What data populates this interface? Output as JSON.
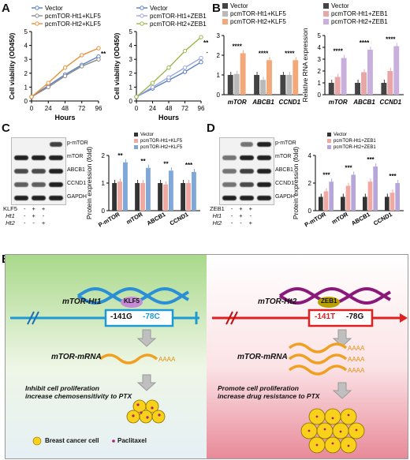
{
  "panels": {
    "A": "A",
    "B": "B",
    "C": "C",
    "D": "D",
    "E": "E"
  },
  "a1": {
    "ylabel": "Cell viability (OD450)",
    "xlabel": "Hours",
    "legend": [
      "Vector",
      "pcmTOR-Ht1+KLF5",
      "pcmTOR-Ht2+KLF5"
    ],
    "colors": [
      "#5b7fbf",
      "#8a8a8a",
      "#e8913a"
    ],
    "ticks_x": [
      "0",
      "24",
      "48",
      "72",
      "96"
    ],
    "ticks_y": [
      "0",
      "1",
      "2",
      "3",
      "4",
      "5"
    ],
    "sig": "**"
  },
  "a2": {
    "ylabel": "Cell viability (OD450)",
    "xlabel": "Hours",
    "legend": [
      "Vector",
      "pcmTOR-Ht1+ZEB1",
      "pcmTOR-Ht2+ZEB1"
    ],
    "colors": [
      "#5b7fbf",
      "#9aa7e0",
      "#9ab84a"
    ],
    "ticks_x": [
      "0",
      "24",
      "48",
      "72",
      "96"
    ],
    "ticks_y": [
      "0",
      "1",
      "2",
      "3",
      "4",
      "5"
    ],
    "sig": "**"
  },
  "b1": {
    "ylabel": "Relative RNA expression",
    "legend": [
      "Vector",
      "pcmTOR-Ht1+KLF5",
      "pcmTOR-Ht2+KLF5"
    ],
    "colors": [
      "#444444",
      "#b9b9b9",
      "#f2a878"
    ],
    "categories": [
      "mTOR",
      "ABCB1",
      "CCND1"
    ],
    "ticks_y": [
      "0",
      "1",
      "2",
      "3"
    ],
    "sig": "****"
  },
  "b2": {
    "ylabel": "Relative RNA expression",
    "legend": [
      "Vector",
      "pcmTOR-Ht1+ZEB1",
      "pcmTOR-Ht2+ZEB1"
    ],
    "colors": [
      "#444444",
      "#e8a6a6",
      "#c9b0dc"
    ],
    "categories": [
      "mTOR",
      "ABCB1",
      "CCND1"
    ],
    "ticks_y": [
      "0",
      "1",
      "2",
      "3",
      "4",
      "5"
    ],
    "sig": "****"
  },
  "c": {
    "blot_labels": [
      "p-mTOR",
      "mTOR",
      "ABCB1",
      "CCND1",
      "GAPDH"
    ],
    "rows": [
      {
        "name": "KLF5",
        "vals": [
          "-",
          "+",
          "+"
        ]
      },
      {
        "name": "Ht1",
        "vals": [
          "-",
          "+",
          "-"
        ]
      },
      {
        "name": "Ht2",
        "vals": [
          "-",
          "-",
          "+"
        ]
      }
    ],
    "ylabel": "Protein expression (fold)",
    "legend": [
      "Vector",
      "pcmTOR-Ht1+KLF5",
      "pcmTOR-Ht2+KLF5"
    ],
    "colors": [
      "#333333",
      "#f0a8a0",
      "#7fa8d8"
    ],
    "categories": [
      "P-mTOR",
      "mTOR",
      "ABCB1",
      "CCND1"
    ],
    "ticks_y": [
      "0",
      "1",
      "2"
    ],
    "sigs": [
      "**",
      "**",
      "**",
      "***"
    ]
  },
  "d": {
    "blot_labels": [
      "p-mTOR",
      "mTOR",
      "ABCB1",
      "CCND1",
      "GAPDH"
    ],
    "rows": [
      {
        "name": "ZEB1",
        "vals": [
          "-",
          "+",
          "+"
        ]
      },
      {
        "name": "Ht1",
        "vals": [
          "-",
          "+",
          "-"
        ]
      },
      {
        "name": "Ht2",
        "vals": [
          "-",
          "-",
          "+"
        ]
      }
    ],
    "ylabel": "Protein expression (fold)",
    "legend": [
      "Vector",
      "pcmTOR-Ht1+ZEB1",
      "pcmTOR-Ht2+ZEB1"
    ],
    "colors": [
      "#333333",
      "#f0a8a0",
      "#b7a6dc"
    ],
    "categories": [
      "P-mTOR",
      "mTOR",
      "ABCB1",
      "CCND1"
    ],
    "ticks_y": [
      "0",
      "2",
      "4"
    ],
    "sigs": [
      "***",
      "***",
      "***",
      "***"
    ]
  },
  "e": {
    "left_gene": "mTOR-Ht1",
    "left_tf": "KLF5",
    "left_snp1": "-141G",
    "left_snp2": "-78C",
    "left_mrna": "mTOR-mRNA",
    "left_poly": "AAAA",
    "left_text": "Inhibit cell proliferation\nincrease chemosensitivity to PTX",
    "right_gene": "mTOR-Ht2",
    "right_tf": "ZEB1",
    "right_snp1": "-141T",
    "right_snp2": "-78G",
    "right_mrna": "mTOR-mRNA",
    "right_poly": "AAAA",
    "right_text": "Promote cell proliferation\nincrease drug resistance to PTX",
    "legend_cell": "Breast cancer cell",
    "legend_drug": "Paclitaxel"
  },
  "chart_data": [
    {
      "type": "line",
      "x": [
        0,
        24,
        48,
        72,
        96
      ],
      "xlabel": "Hours",
      "ylabel": "Cell viability (OD450)",
      "ylim": [
        0,
        5
      ],
      "series": [
        {
          "name": "Vector",
          "values": [
            0.3,
            1.1,
            1.9,
            2.6,
            3.2
          ]
        },
        {
          "name": "pcmTOR-Ht1+KLF5",
          "values": [
            0.3,
            1.0,
            1.8,
            2.5,
            3.0
          ]
        },
        {
          "name": "pcmTOR-Ht2+KLF5",
          "values": [
            0.3,
            1.3,
            2.4,
            3.3,
            3.8
          ]
        }
      ]
    },
    {
      "type": "line",
      "x": [
        0,
        24,
        48,
        72,
        96
      ],
      "xlabel": "Hours",
      "ylabel": "Cell viability (OD450)",
      "ylim": [
        0,
        5
      ],
      "series": [
        {
          "name": "Vector",
          "values": [
            0.3,
            0.9,
            1.5,
            2.1,
            2.8
          ]
        },
        {
          "name": "pcmTOR-Ht1+ZEB1",
          "values": [
            0.3,
            1.0,
            1.7,
            2.4,
            3.1
          ]
        },
        {
          "name": "pcmTOR-Ht2+ZEB1",
          "values": [
            0.3,
            1.3,
            2.4,
            3.6,
            4.6
          ]
        }
      ]
    },
    {
      "type": "bar",
      "categories": [
        "mTOR",
        "ABCB1",
        "CCND1"
      ],
      "ylabel": "Relative RNA expression",
      "ylim": [
        0,
        3
      ],
      "series": [
        {
          "name": "Vector",
          "values": [
            1.0,
            1.0,
            1.0
          ]
        },
        {
          "name": "pcmTOR-Ht1+KLF5",
          "values": [
            1.05,
            0.75,
            1.0
          ]
        },
        {
          "name": "pcmTOR-Ht2+KLF5",
          "values": [
            2.1,
            1.75,
            1.75
          ]
        }
      ]
    },
    {
      "type": "bar",
      "categories": [
        "mTOR",
        "ABCB1",
        "CCND1"
      ],
      "ylabel": "Relative RNA expression",
      "ylim": [
        0,
        5
      ],
      "series": [
        {
          "name": "Vector",
          "values": [
            1.0,
            1.0,
            1.0
          ]
        },
        {
          "name": "pcmTOR-Ht1+ZEB1",
          "values": [
            1.5,
            1.9,
            2.0
          ]
        },
        {
          "name": "pcmTOR-Ht2+ZEB1",
          "values": [
            3.1,
            3.8,
            4.1
          ]
        }
      ]
    },
    {
      "type": "bar",
      "categories": [
        "P-mTOR",
        "mTOR",
        "ABCB1",
        "CCND1"
      ],
      "ylabel": "Protein expression (fold)",
      "ylim": [
        0,
        2
      ],
      "series": [
        {
          "name": "Vector",
          "values": [
            1.0,
            1.0,
            1.0,
            1.0
          ]
        },
        {
          "name": "pcmTOR-Ht1+KLF5",
          "values": [
            1.05,
            1.0,
            0.95,
            1.0
          ]
        },
        {
          "name": "pcmTOR-Ht2+KLF5",
          "values": [
            1.75,
            1.55,
            1.45,
            1.4
          ]
        }
      ]
    },
    {
      "type": "bar",
      "categories": [
        "P-mTOR",
        "mTOR",
        "ABCB1",
        "CCND1"
      ],
      "ylabel": "Protein expression (fold)",
      "ylim": [
        0,
        4
      ],
      "series": [
        {
          "name": "Vector",
          "values": [
            1.0,
            1.0,
            1.0,
            1.0
          ]
        },
        {
          "name": "pcmTOR-Ht1+ZEB1",
          "values": [
            1.4,
            1.8,
            2.1,
            1.3
          ]
        },
        {
          "name": "pcmTOR-Ht2+ZEB1",
          "values": [
            2.1,
            2.6,
            3.2,
            2.0
          ]
        }
      ]
    }
  ]
}
